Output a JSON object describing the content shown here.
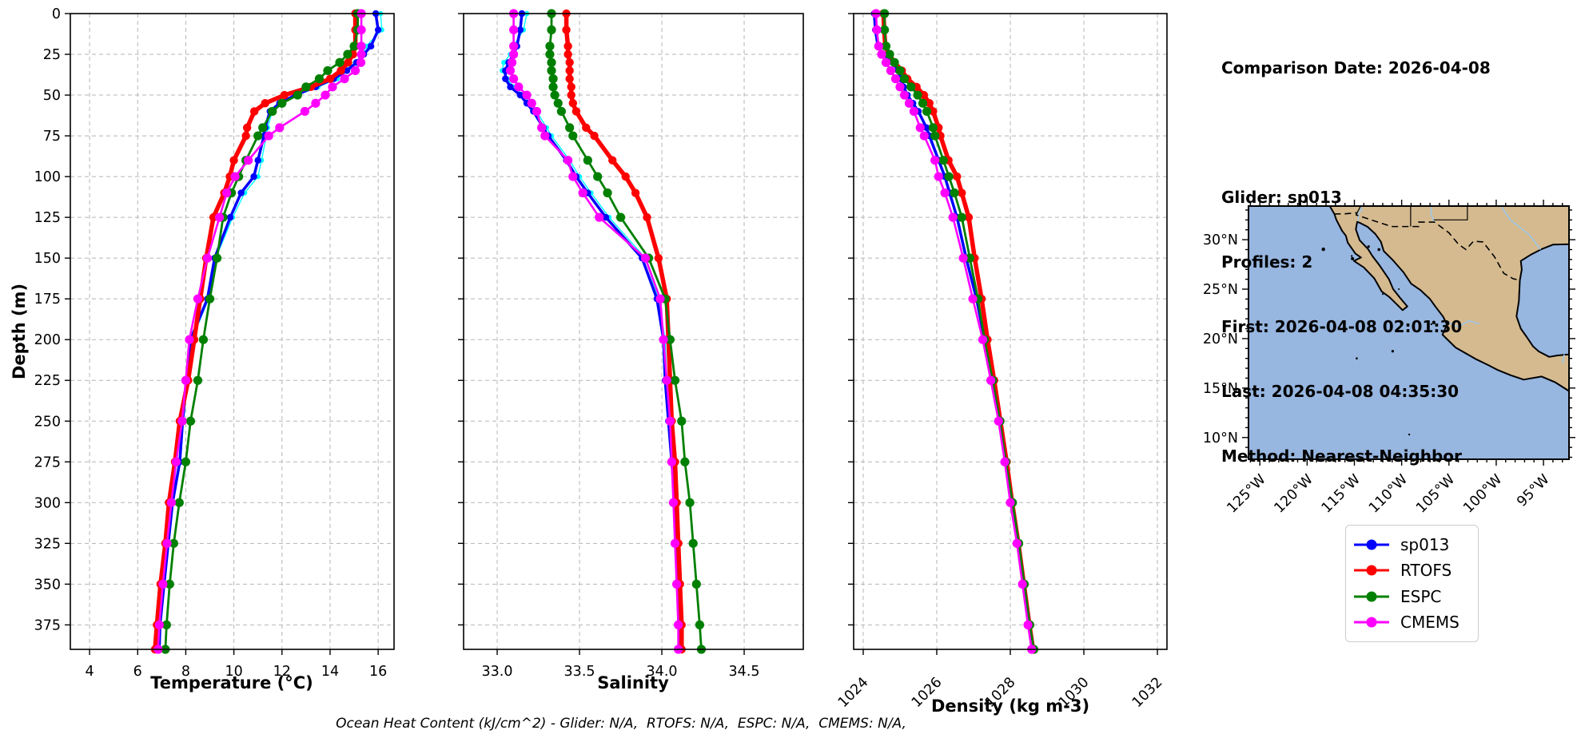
{
  "info_panel": {
    "comparison_date": "Comparison Date: 2026-04-08",
    "glider": "Glider: sp013",
    "profiles": "Profiles: 2",
    "first": "First: 2026-04-08 02:01:30",
    "last": "Last: 2026-04-08 04:35:30",
    "method": "Method: Nearest-Neighbor"
  },
  "footer": {
    "ohc_line": "Ocean Heat Content (kJ/cm^2) - Glider: N/A,  RTOFS: N/A,  ESPC: N/A,  CMEMS: N/A,"
  },
  "legend": {
    "items": [
      {
        "label": "sp013",
        "color": "#0000ff"
      },
      {
        "label": "RTOFS",
        "color": "#ff0000"
      },
      {
        "label": "ESPC",
        "color": "#008000"
      },
      {
        "label": "CMEMS",
        "color": "#ff00ff"
      }
    ]
  },
  "colors": {
    "glider_raw": "#00ffff",
    "sp013": "#0000ff",
    "rtofs": "#ff0000",
    "espc": "#008000",
    "cmems": "#ff00ff",
    "grid": "#b5b5b5",
    "ocean": "#97b6e0",
    "land": "#d5ba90",
    "river": "#9ec8e8"
  },
  "map": {
    "extent": {
      "lon": [
        -126.2,
        -92.3
      ],
      "lat": [
        7.8,
        33.4
      ]
    },
    "lat_ticks": [
      {
        "v": 30,
        "label": "30°N"
      },
      {
        "v": 25,
        "label": "25°N"
      },
      {
        "v": 20,
        "label": "20°N"
      },
      {
        "v": 15,
        "label": "15°N"
      },
      {
        "v": 10,
        "label": "10°N"
      }
    ],
    "lon_ticks": [
      {
        "v": -125,
        "label": "125°W"
      },
      {
        "v": -120,
        "label": "120°W"
      },
      {
        "v": -115,
        "label": "115°W"
      },
      {
        "v": -110,
        "label": "110°W"
      },
      {
        "v": -105,
        "label": "105°W"
      },
      {
        "v": -100,
        "label": "100°W"
      },
      {
        "v": -95,
        "label": "95°W"
      }
    ]
  },
  "chart_data": {
    "type": "line",
    "description": "Glider sp013 vs model depth profiles; depth increases downward (inverted y axis), dashed grid on",
    "y_axis": {
      "label": "Depth (m)",
      "range": [
        0,
        390
      ],
      "inverted": true,
      "ticks": [
        0,
        25,
        50,
        75,
        100,
        125,
        150,
        175,
        200,
        225,
        250,
        275,
        300,
        325,
        350,
        375
      ]
    },
    "depths_m": [
      0,
      10,
      20,
      25,
      30,
      35,
      40,
      45,
      50,
      55,
      60,
      70,
      75,
      90,
      100,
      110,
      125,
      150,
      175,
      200,
      225,
      250,
      275,
      300,
      325,
      350,
      375,
      390
    ],
    "panels": [
      {
        "id": "temperature",
        "xlabel": "Temperature (°C)",
        "xrange": [
          3.2,
          16.66
        ],
        "xticks": [
          {
            "v": 4,
            "label": "4"
          },
          {
            "v": 6,
            "label": "6"
          },
          {
            "v": 8,
            "label": "8"
          },
          {
            "v": 10,
            "label": "10"
          },
          {
            "v": 12,
            "label": "12"
          },
          {
            "v": 14,
            "label": "14"
          },
          {
            "v": 16,
            "label": "16"
          }
        ],
        "xtick_rotation": 0,
        "series": [
          {
            "name": "sp013-raw-profiles",
            "color": "#00ffff",
            "values": [
              16.1,
              16.15,
              15.5,
              15.35,
              15.05,
              14.6,
              14.3,
              13.5,
              12.65,
              12.0,
              11.6,
              11.4,
              11.35,
              11.15,
              11.0,
              10.45,
              9.95,
              9.25,
              8.95,
              8.25,
              8.07,
              7.9,
              7.78,
              7.48,
              7.3,
              7.12,
              6.95,
              6.92
            ]
          },
          {
            "name": "sp013",
            "color": "#0000ff",
            "values": [
              15.9,
              16.0,
              15.7,
              15.4,
              15.1,
              14.7,
              14.15,
              13.4,
              12.55,
              11.9,
              11.5,
              11.3,
              11.25,
              11.0,
              10.83,
              10.3,
              9.85,
              9.2,
              8.9,
              8.2,
              8.03,
              7.87,
              7.75,
              7.45,
              7.27,
              7.1,
              6.93,
              6.9
            ]
          },
          {
            "name": "RTOFS",
            "color": "#ff0000",
            "values": [
              15.05,
              15.05,
              15.05,
              14.95,
              14.75,
              14.45,
              14.0,
              13.2,
              12.1,
              11.3,
              10.85,
              10.55,
              10.5,
              10.0,
              9.83,
              9.6,
              9.15,
              8.85,
              8.6,
              8.35,
              8.1,
              7.75,
              7.55,
              7.3,
              7.15,
              6.95,
              6.8,
              6.72
            ]
          },
          {
            "name": "ESPC",
            "color": "#008000",
            "values": [
              15.15,
              15.15,
              15.0,
              14.73,
              14.4,
              13.9,
              13.55,
              13.0,
              12.65,
              12.0,
              11.6,
              11.2,
              11.0,
              10.5,
              10.2,
              9.9,
              9.55,
              9.3,
              9.0,
              8.73,
              8.5,
              8.2,
              8.0,
              7.73,
              7.5,
              7.33,
              7.2,
              7.15
            ]
          },
          {
            "name": "CMEMS",
            "color": "#ff00ff",
            "values": [
              15.3,
              15.3,
              15.3,
              15.3,
              15.28,
              15.05,
              14.6,
              14.1,
              13.8,
              13.4,
              12.95,
              11.9,
              11.45,
              10.6,
              10.05,
              9.7,
              9.4,
              8.9,
              8.5,
              8.15,
              8.0,
              7.85,
              7.6,
              7.4,
              7.22,
              7.05,
              6.9,
              6.85
            ]
          }
        ]
      },
      {
        "id": "salinity",
        "xlabel": "Salinity",
        "xrange": [
          32.796,
          34.859
        ],
        "xticks": [
          {
            "v": 33.0,
            "label": "33.0"
          },
          {
            "v": 33.5,
            "label": "33.5"
          },
          {
            "v": 34.0,
            "label": "34.0"
          },
          {
            "v": 34.5,
            "label": "34.5"
          }
        ],
        "xtick_rotation": 0,
        "series": [
          {
            "name": "sp013-raw-profiles",
            "color": "#00ffff",
            "values": [
              33.18,
              33.16,
              33.1,
              33.08,
              33.04,
              33.03,
              33.06,
              33.1,
              33.16,
              33.2,
              33.24,
              33.3,
              33.33,
              33.44,
              33.5,
              33.57,
              33.68,
              33.9,
              33.98,
              34.02,
              34.03,
              34.05,
              34.07,
              34.09,
              34.1,
              34.11,
              34.12,
              34.12
            ]
          },
          {
            "name": "sp013",
            "color": "#0000ff",
            "values": [
              33.15,
              33.14,
              33.12,
              33.1,
              33.07,
              33.05,
              33.05,
              33.08,
              33.14,
              33.18,
              33.22,
              33.28,
              33.31,
              33.42,
              33.48,
              33.55,
              33.66,
              33.88,
              33.97,
              34.01,
              34.02,
              34.04,
              34.06,
              34.08,
              34.09,
              34.1,
              34.11,
              34.11
            ]
          },
          {
            "name": "RTOFS",
            "color": "#ff0000",
            "values": [
              33.42,
              33.42,
              33.43,
              33.43,
              33.44,
              33.44,
              33.44,
              33.45,
              33.45,
              33.46,
              33.48,
              33.54,
              33.59,
              33.7,
              33.78,
              33.84,
              33.91,
              33.98,
              34.03,
              34.04,
              34.05,
              34.06,
              34.08,
              34.09,
              34.1,
              34.11,
              34.12,
              34.12
            ]
          },
          {
            "name": "ESPC",
            "color": "#008000",
            "values": [
              33.33,
              33.33,
              33.32,
              33.32,
              33.33,
              33.33,
              33.34,
              33.34,
              33.35,
              33.37,
              33.39,
              33.44,
              33.46,
              33.55,
              33.61,
              33.67,
              33.75,
              33.92,
              34.02,
              34.05,
              34.08,
              34.12,
              34.14,
              34.17,
              34.19,
              34.21,
              34.23,
              34.24
            ]
          },
          {
            "name": "CMEMS",
            "color": "#ff00ff",
            "values": [
              33.1,
              33.1,
              33.1,
              33.1,
              33.09,
              33.08,
              33.1,
              33.13,
              33.18,
              33.21,
              33.24,
              33.27,
              33.29,
              33.43,
              33.46,
              33.52,
              33.62,
              33.9,
              33.99,
              34.01,
              34.03,
              34.05,
              34.06,
              34.07,
              34.08,
              34.09,
              34.1,
              34.1
            ]
          }
        ]
      },
      {
        "id": "density",
        "xlabel": "Density (kg m-3)",
        "xrange": [
          1023.74,
          1032.26
        ],
        "xticks": [
          {
            "v": 1024,
            "label": "1024"
          },
          {
            "v": 1026,
            "label": "1026"
          },
          {
            "v": 1028,
            "label": "1028"
          },
          {
            "v": 1030,
            "label": "1030"
          },
          {
            "v": 1032,
            "label": "1032"
          }
        ],
        "xtick_rotation": 45,
        "series": [
          {
            "name": "sp013-raw-profiles",
            "color": "#00ffff",
            "values": [
              1024.32,
              1024.35,
              1024.42,
              1024.57,
              1024.82,
              1024.97,
              1025.05,
              1025.12,
              1025.23,
              1025.38,
              1025.52,
              1025.74,
              1025.83,
              1026.07,
              1026.24,
              1026.37,
              1026.57,
              1026.82,
              1027.1,
              1027.32,
              1027.52,
              1027.72,
              1027.88,
              1028.05,
              1028.21,
              1028.36,
              1028.51,
              1028.61
            ]
          },
          {
            "name": "sp013",
            "color": "#0000ff",
            "values": [
              1024.3,
              1024.33,
              1024.4,
              1024.55,
              1024.8,
              1024.95,
              1025.02,
              1025.1,
              1025.2,
              1025.35,
              1025.5,
              1025.72,
              1025.8,
              1026.05,
              1026.22,
              1026.35,
              1026.55,
              1026.8,
              1027.08,
              1027.3,
              1027.5,
              1027.7,
              1027.87,
              1028.03,
              1028.2,
              1028.35,
              1028.5,
              1028.6
            ]
          },
          {
            "name": "RTOFS",
            "color": "#ff0000",
            "values": [
              1024.55,
              1024.57,
              1024.6,
              1024.7,
              1024.85,
              1025.05,
              1025.2,
              1025.45,
              1025.65,
              1025.8,
              1025.9,
              1026.05,
              1026.1,
              1026.32,
              1026.55,
              1026.68,
              1026.87,
              1027.03,
              1027.22,
              1027.38,
              1027.56,
              1027.73,
              1027.9,
              1028.05,
              1028.22,
              1028.37,
              1028.52,
              1028.62
            ]
          },
          {
            "name": "ESPC",
            "color": "#008000",
            "values": [
              1024.58,
              1024.58,
              1024.62,
              1024.72,
              1024.85,
              1025.0,
              1025.12,
              1025.3,
              1025.48,
              1025.62,
              1025.73,
              1025.9,
              1025.95,
              1026.18,
              1026.33,
              1026.48,
              1026.68,
              1026.9,
              1027.12,
              1027.3,
              1027.52,
              1027.72,
              1027.88,
              1028.06,
              1028.23,
              1028.38,
              1028.53,
              1028.64
            ]
          },
          {
            "name": "CMEMS",
            "color": "#ff00ff",
            "values": [
              1024.35,
              1024.37,
              1024.42,
              1024.5,
              1024.62,
              1024.75,
              1024.88,
              1025.0,
              1025.12,
              1025.25,
              1025.38,
              1025.55,
              1025.66,
              1025.95,
              1026.05,
              1026.22,
              1026.44,
              1026.72,
              1026.98,
              1027.25,
              1027.47,
              1027.68,
              1027.85,
              1028.0,
              1028.18,
              1028.33,
              1028.48,
              1028.58
            ]
          }
        ]
      }
    ]
  }
}
